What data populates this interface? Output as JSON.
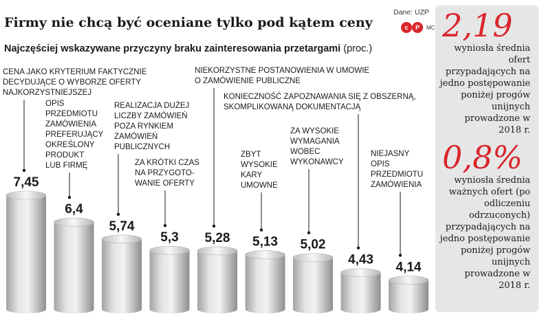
{
  "header": {
    "title": "Firmy nie chcą być oceniane tylko pod kątem ceny",
    "subtitle": "Najczęściej wskazywane przyczyny braku zainteresowania przetargami",
    "subtitle_unit": "(proc.)",
    "source": "Dane: UZP",
    "logo_left": "c",
    "logo_right": "P",
    "author": "MC"
  },
  "sidebar": {
    "fact1_value": "2,19",
    "fact1_text": "wyniosła średnia ofert przypadających na jedno postępowanie poniżej progów unijnych prowadzone w 2018 r.",
    "fact2_value": "0,8%",
    "fact2_text": "wyniosła średnia ważnych ofert (po odliczeniu odrzuconych) przypadających na jedno postępowanie poniżej progów unijnych prowadzone w 2018 r."
  },
  "colors": {
    "accent": "#d9262c",
    "bar_light": "#e9e9e9",
    "bar_dark": "#9a9a9a",
    "panel": "#e6e6e6"
  },
  "chart_data": {
    "type": "bar",
    "title": "Najczęściej wskazywane przyczyny braku zainteresowania przetargami",
    "unit": "(proc.)",
    "value_labels": [
      "7,45",
      "6,4",
      "5,74",
      "5,3",
      "5,28",
      "5,13",
      "5,02",
      "4,43",
      "4,14"
    ],
    "values": [
      7.45,
      6.4,
      5.74,
      5.3,
      5.28,
      5.13,
      5.02,
      4.43,
      4.14
    ],
    "categories": [
      [
        "CENA JAKO KRYTERIUM FAKTYCZNIE",
        "DECYDUJĄCE O WYBORZE OFERTY",
        "NAJKORZYSTNIEJSZEJ"
      ],
      [
        "OPIS",
        "PRZEDMIOTU",
        "ZAMÓWIENIA",
        "PREFERUJĄCY",
        "OKREŚLONY",
        "PRODUKT",
        "LUB FIRMĘ"
      ],
      [
        "REALIZACJA DUŻEJ",
        "LICZBY ZAMÓWIEŃ",
        "POZA RYNKIEM",
        "ZAMÓWIEŃ",
        "PUBLICZNYCH"
      ],
      [
        "ZA KRÓTKI CZAS",
        "NA PRZYGOTO-",
        "WANIE OFERTY"
      ],
      [
        "NIEKORZYSTNE POSTANOWIENIA W UMOWIE",
        "O ZAMÓWIENIE PUBLICZNE"
      ],
      [
        "ZBYT",
        "WYSOKIE",
        "KARY",
        "UMOWNE"
      ],
      [
        "ZA WYSOKIE",
        "WYMAGANIA",
        "WOBEC",
        "WYKONAWCY"
      ],
      [
        "KONIECZNOŚĆ ZAPOZNAWANIA SIĘ Z OBSZERNĄ,",
        "SKOMPLIKOWANĄ DOKUMENTACJĄ"
      ],
      [
        "NIEJASNY",
        "OPIS",
        "PRZEDMIOTU",
        "ZAMÓWIENIA"
      ]
    ]
  }
}
